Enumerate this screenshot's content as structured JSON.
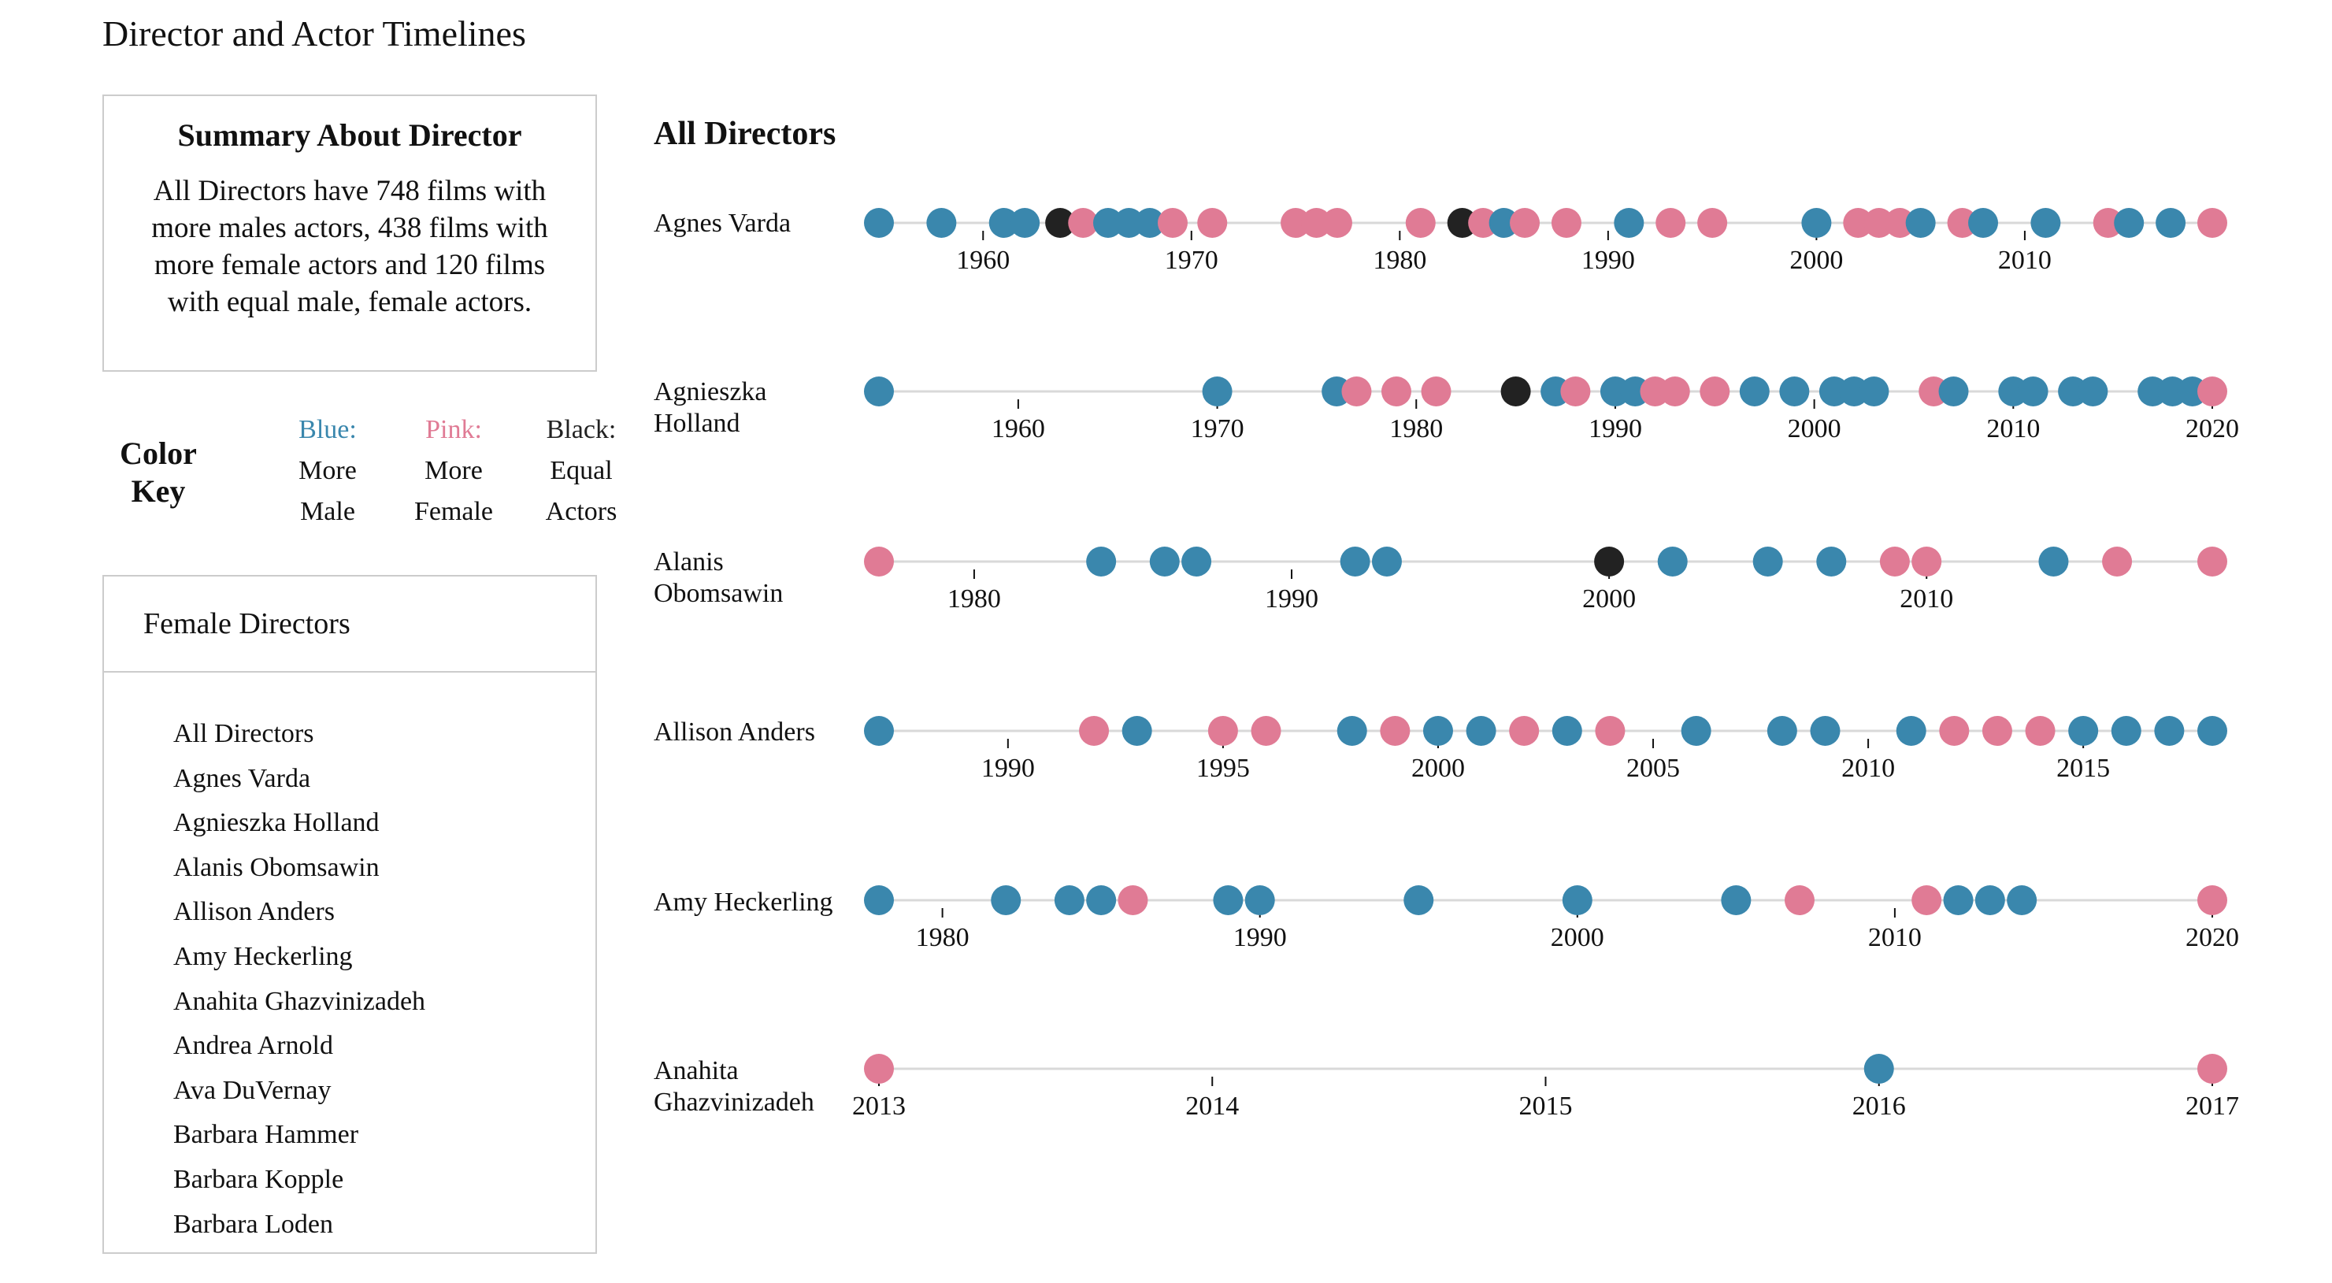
{
  "page": {
    "title": "Director and Actor Timelines"
  },
  "summary": {
    "title": "Summary About Director",
    "text": "All Directors have 748 films with more males actors, 438 films with more female actors and 120 films with equal male, female actors."
  },
  "color_key": {
    "title": "Color Key",
    "blue_label": "Blue:",
    "blue_line1": "More",
    "blue_line2": "Male",
    "pink_label": "Pink:",
    "pink_line1": "More",
    "pink_line2": "Female",
    "black_label": "Black:",
    "black_line1": "Equal",
    "black_line2": "Actors"
  },
  "directors_panel": {
    "title": "Female Directors",
    "items": [
      "All Directors",
      "Agnes Varda",
      "Agnieszka Holland",
      "Alanis Obomsawin",
      "Allison Anders",
      "Amy Heckerling",
      "Anahita Ghazvinizadeh",
      "Andrea Arnold",
      "Ava DuVernay",
      "Barbara Hammer",
      "Barbara Kopple",
      "Barbara Loden"
    ]
  },
  "colors": {
    "blue": "#3a87ad",
    "pink": "#e07b95",
    "black": "#222222",
    "line": "#d9d9d9"
  },
  "chart_data": {
    "type": "scatter",
    "title": "All Directors",
    "rows": [
      {
        "name": "Agnes Varda",
        "domain": [
          1955,
          2019
        ],
        "ticks": [
          1960,
          1970,
          1980,
          1990,
          2000,
          2010
        ],
        "films": [
          {
            "year": 1955,
            "cat": "male"
          },
          {
            "year": 1958,
            "cat": "male"
          },
          {
            "year": 1961,
            "cat": "male"
          },
          {
            "year": 1962,
            "cat": "male"
          },
          {
            "year": 1963.7,
            "cat": "equal"
          },
          {
            "year": 1964.8,
            "cat": "female"
          },
          {
            "year": 1966,
            "cat": "male"
          },
          {
            "year": 1967,
            "cat": "male"
          },
          {
            "year": 1968,
            "cat": "male"
          },
          {
            "year": 1969.1,
            "cat": "female"
          },
          {
            "year": 1971,
            "cat": "female"
          },
          {
            "year": 1975,
            "cat": "female"
          },
          {
            "year": 1976,
            "cat": "female"
          },
          {
            "year": 1977,
            "cat": "female"
          },
          {
            "year": 1981,
            "cat": "female"
          },
          {
            "year": 1983,
            "cat": "equal"
          },
          {
            "year": 1984,
            "cat": "female"
          },
          {
            "year": 1985,
            "cat": "male"
          },
          {
            "year": 1986,
            "cat": "female"
          },
          {
            "year": 1988,
            "cat": "female"
          },
          {
            "year": 1991,
            "cat": "male"
          },
          {
            "year": 1993,
            "cat": "female"
          },
          {
            "year": 1995,
            "cat": "female"
          },
          {
            "year": 2000,
            "cat": "male"
          },
          {
            "year": 2002,
            "cat": "female"
          },
          {
            "year": 2003,
            "cat": "female"
          },
          {
            "year": 2004,
            "cat": "female"
          },
          {
            "year": 2005,
            "cat": "male"
          },
          {
            "year": 2007,
            "cat": "female"
          },
          {
            "year": 2008,
            "cat": "male"
          },
          {
            "year": 2011,
            "cat": "male"
          },
          {
            "year": 2014,
            "cat": "female"
          },
          {
            "year": 2015,
            "cat": "male"
          },
          {
            "year": 2017,
            "cat": "male"
          },
          {
            "year": 2019,
            "cat": "female"
          }
        ]
      },
      {
        "name": "Agnieszka Holland",
        "domain": [
          1953,
          2020
        ],
        "ticks": [
          1960,
          1970,
          1980,
          1990,
          2000,
          2010,
          2020
        ],
        "films": [
          {
            "year": 1953,
            "cat": "male"
          },
          {
            "year": 1970,
            "cat": "male"
          },
          {
            "year": 1976,
            "cat": "male"
          },
          {
            "year": 1977,
            "cat": "female"
          },
          {
            "year": 1979,
            "cat": "female"
          },
          {
            "year": 1981,
            "cat": "female"
          },
          {
            "year": 1985,
            "cat": "equal"
          },
          {
            "year": 1987,
            "cat": "male"
          },
          {
            "year": 1988,
            "cat": "female"
          },
          {
            "year": 1990,
            "cat": "male"
          },
          {
            "year": 1991,
            "cat": "male"
          },
          {
            "year": 1992,
            "cat": "female"
          },
          {
            "year": 1993,
            "cat": "female"
          },
          {
            "year": 1995,
            "cat": "female"
          },
          {
            "year": 1997,
            "cat": "male"
          },
          {
            "year": 1999,
            "cat": "male"
          },
          {
            "year": 2001,
            "cat": "male"
          },
          {
            "year": 2002,
            "cat": "male"
          },
          {
            "year": 2003,
            "cat": "male"
          },
          {
            "year": 2006,
            "cat": "female"
          },
          {
            "year": 2007,
            "cat": "male"
          },
          {
            "year": 2010,
            "cat": "male"
          },
          {
            "year": 2011,
            "cat": "male"
          },
          {
            "year": 2013,
            "cat": "male"
          },
          {
            "year": 2014,
            "cat": "male"
          },
          {
            "year": 2017,
            "cat": "male"
          },
          {
            "year": 2018,
            "cat": "male"
          },
          {
            "year": 2019,
            "cat": "male"
          },
          {
            "year": 2020,
            "cat": "female"
          }
        ]
      },
      {
        "name": "Alanis Obomsawin",
        "domain": [
          1977,
          2019
        ],
        "ticks": [
          1980,
          1990,
          2000,
          2010
        ],
        "films": [
          {
            "year": 1977,
            "cat": "female"
          },
          {
            "year": 1984,
            "cat": "male"
          },
          {
            "year": 1986,
            "cat": "male"
          },
          {
            "year": 1987,
            "cat": "male"
          },
          {
            "year": 1992,
            "cat": "male"
          },
          {
            "year": 1993,
            "cat": "male"
          },
          {
            "year": 2000,
            "cat": "equal"
          },
          {
            "year": 2002,
            "cat": "male"
          },
          {
            "year": 2005,
            "cat": "male"
          },
          {
            "year": 2007,
            "cat": "male"
          },
          {
            "year": 2009,
            "cat": "female"
          },
          {
            "year": 2010,
            "cat": "female"
          },
          {
            "year": 2014,
            "cat": "male"
          },
          {
            "year": 2016,
            "cat": "female"
          },
          {
            "year": 2019,
            "cat": "female"
          }
        ]
      },
      {
        "name": "Allison Anders",
        "domain": [
          1987,
          2018
        ],
        "ticks": [
          1990,
          1995,
          2000,
          2005,
          2010,
          2015
        ],
        "films": [
          {
            "year": 1987,
            "cat": "male"
          },
          {
            "year": 1992,
            "cat": "female"
          },
          {
            "year": 1993,
            "cat": "male"
          },
          {
            "year": 1995,
            "cat": "female"
          },
          {
            "year": 1996,
            "cat": "female"
          },
          {
            "year": 1998,
            "cat": "male"
          },
          {
            "year": 1999,
            "cat": "female"
          },
          {
            "year": 2000,
            "cat": "male"
          },
          {
            "year": 2001,
            "cat": "male"
          },
          {
            "year": 2002,
            "cat": "female"
          },
          {
            "year": 2003,
            "cat": "male"
          },
          {
            "year": 2004,
            "cat": "female"
          },
          {
            "year": 2006,
            "cat": "male"
          },
          {
            "year": 2008,
            "cat": "male"
          },
          {
            "year": 2009,
            "cat": "male"
          },
          {
            "year": 2011,
            "cat": "male"
          },
          {
            "year": 2012,
            "cat": "female"
          },
          {
            "year": 2013,
            "cat": "female"
          },
          {
            "year": 2014,
            "cat": "female"
          },
          {
            "year": 2015,
            "cat": "male"
          },
          {
            "year": 2016,
            "cat": "male"
          },
          {
            "year": 2017,
            "cat": "male"
          },
          {
            "year": 2018,
            "cat": "male"
          }
        ]
      },
      {
        "name": "Amy Heckerling",
        "domain": [
          1978,
          2020
        ],
        "ticks": [
          1980,
          1990,
          2000,
          2010,
          2020
        ],
        "films": [
          {
            "year": 1978,
            "cat": "male"
          },
          {
            "year": 1982,
            "cat": "male"
          },
          {
            "year": 1984,
            "cat": "male"
          },
          {
            "year": 1985,
            "cat": "male"
          },
          {
            "year": 1986,
            "cat": "female"
          },
          {
            "year": 1989,
            "cat": "male"
          },
          {
            "year": 1990,
            "cat": "male"
          },
          {
            "year": 1995,
            "cat": "male"
          },
          {
            "year": 2000,
            "cat": "male"
          },
          {
            "year": 2005,
            "cat": "male"
          },
          {
            "year": 2007,
            "cat": "female"
          },
          {
            "year": 2011,
            "cat": "female"
          },
          {
            "year": 2012,
            "cat": "male"
          },
          {
            "year": 2013,
            "cat": "male"
          },
          {
            "year": 2014,
            "cat": "male"
          },
          {
            "year": 2020,
            "cat": "female"
          }
        ]
      },
      {
        "name": "Anahita Ghazvinizadeh",
        "domain": [
          2013,
          2017
        ],
        "ticks": [
          2013,
          2014,
          2015,
          2016,
          2017
        ],
        "films": [
          {
            "year": 2013,
            "cat": "female"
          },
          {
            "year": 2016,
            "cat": "male"
          },
          {
            "year": 2017,
            "cat": "female"
          }
        ]
      }
    ]
  }
}
